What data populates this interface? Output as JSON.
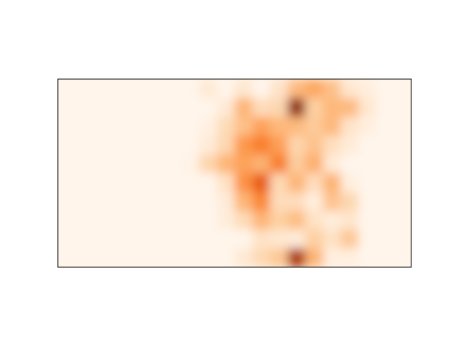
{
  "chart_data": {
    "type": "heatmap",
    "title": "",
    "xlabel": "",
    "ylabel": "",
    "axes_visible": false,
    "grid": false,
    "colormap": {
      "name": "Oranges",
      "stops": [
        "#fff5eb",
        "#fee6ce",
        "#fdd0a2",
        "#fdae6b",
        "#fd8d3c",
        "#f16913",
        "#d94801",
        "#a63603",
        "#7f2704"
      ]
    },
    "x_range": [
      0,
      20
    ],
    "y_range": [
      0,
      10
    ],
    "values": [
      [
        0,
        0,
        0,
        0,
        0,
        0,
        0,
        0,
        0.1,
        0,
        0.12,
        0,
        0.14,
        0.33,
        0.4,
        0.31,
        0.12,
        0.06,
        0,
        0
      ],
      [
        0,
        0,
        0,
        0,
        0,
        0,
        0,
        0,
        0,
        0.09,
        0.35,
        0.18,
        0.21,
        0.95,
        0.25,
        0.34,
        0.33,
        0.12,
        0,
        0
      ],
      [
        0,
        0,
        0,
        0,
        0,
        0,
        0,
        0,
        0.04,
        0.19,
        0.31,
        0.42,
        0.34,
        0.33,
        0.27,
        0.34,
        0.14,
        0.05,
        0,
        0
      ],
      [
        0,
        0,
        0,
        0,
        0,
        0,
        0,
        0,
        0.08,
        0.21,
        0.46,
        0.55,
        0.43,
        0.22,
        0.3,
        0.17,
        0.08,
        0,
        0,
        0
      ],
      [
        0,
        0,
        0,
        0,
        0,
        0,
        0,
        0.02,
        0.22,
        0.35,
        0.42,
        0.36,
        0.55,
        0.26,
        0.37,
        0.09,
        0,
        0,
        0,
        0
      ],
      [
        0,
        0,
        0,
        0,
        0,
        0,
        0,
        0,
        0,
        0.15,
        0.48,
        0.67,
        0.2,
        0.35,
        0.18,
        0.36,
        0.05,
        0,
        0,
        0
      ],
      [
        0,
        0,
        0,
        0,
        0,
        0,
        0,
        0,
        0,
        0.08,
        0.35,
        0.52,
        0.18,
        0.18,
        0.06,
        0.3,
        0.21,
        0,
        0,
        0
      ],
      [
        0,
        0,
        0,
        0,
        0,
        0,
        0,
        0,
        0,
        0.07,
        0.19,
        0.35,
        0.25,
        0.32,
        0.15,
        0.07,
        0.13,
        0,
        0,
        0
      ],
      [
        0,
        0,
        0,
        0,
        0,
        0,
        0,
        0,
        0,
        0,
        0,
        0.15,
        0.12,
        0.08,
        0.25,
        0.15,
        0.28,
        0,
        0,
        0
      ],
      [
        0,
        0,
        0,
        0,
        0,
        0,
        0,
        0,
        0,
        0,
        0.1,
        0.2,
        0.28,
        0.86,
        0.35,
        0.05,
        0.05,
        0,
        0,
        0
      ]
    ]
  }
}
